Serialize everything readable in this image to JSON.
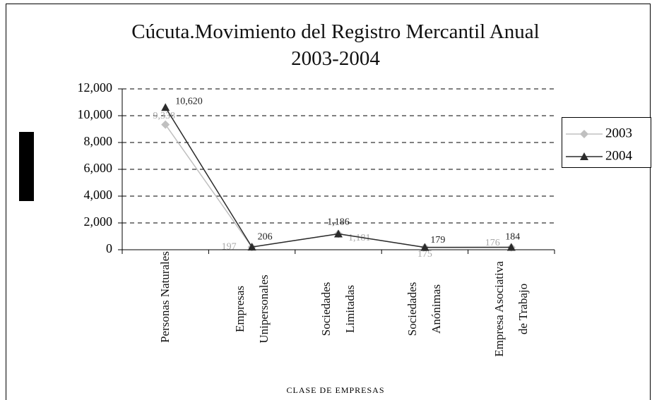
{
  "chart_data": {
    "type": "line",
    "title": "Cúcuta.Movimiento del Registro Mercantil Anual 2003-2004",
    "x_label": "CLASE DE EMPRESAS",
    "categories": [
      "Personas Naturales",
      "Empresas Unipersonales",
      "Sociedades Limitadas",
      "Sociedades Anónimas",
      "Empresa Asociativa de Trabajo"
    ],
    "series": [
      {
        "name": "2003",
        "color": "#c0c0c0",
        "marker": "diamond",
        "values": [
          9338,
          197,
          1181,
          175,
          176
        ],
        "value_labels": [
          "9,338",
          "197",
          "1,181",
          "175",
          "176"
        ]
      },
      {
        "name": "2004",
        "color": "#2b2b2b",
        "marker": "triangle",
        "values": [
          10620,
          206,
          1186,
          179,
          184
        ],
        "value_labels": [
          "10,620",
          "206",
          "1,186",
          "179",
          "184"
        ]
      }
    ],
    "ylim": [
      0,
      12000
    ],
    "yticks": [
      0,
      {
        "value": 2000,
        "label": "2,000"
      },
      {
        "value": 4000,
        "label": "4,000"
      },
      {
        "value": 6000,
        "label": "6,000"
      },
      {
        "value": 8000,
        "label": "8,000"
      },
      {
        "value": 10000,
        "label": "10,000"
      },
      {
        "value": 12000,
        "label": "12,000"
      }
    ],
    "grid": true,
    "legend": "right"
  }
}
